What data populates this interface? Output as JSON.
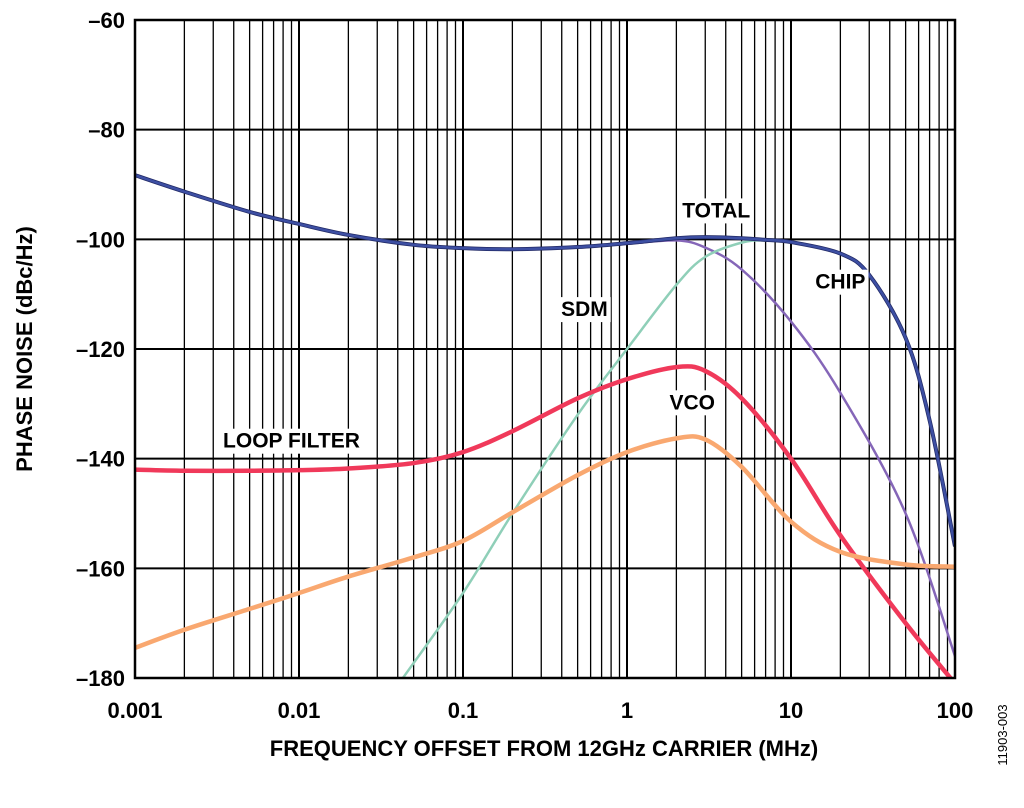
{
  "chart_data": {
    "type": "line",
    "title": "",
    "xlabel": "FREQUENCY OFFSET FROM 12GHz CARRIER (MHz)",
    "ylabel": "PHASE NOISE (dBc/Hz)",
    "xscale": "log",
    "xlim": [
      0.001,
      100
    ],
    "ylim": [
      -180,
      -60
    ],
    "grid": true,
    "legend": "none (inline labels)",
    "xticks": [
      0.001,
      0.01,
      0.1,
      1,
      10,
      100
    ],
    "xtick_labels": [
      "0.001",
      "0.01",
      "0.1",
      "1",
      "10",
      "100"
    ],
    "yticks": [
      -60,
      -80,
      -100,
      -120,
      -140,
      -160,
      -180
    ],
    "ytick_labels": [
      "–60",
      "–80",
      "–100",
      "–120",
      "–140",
      "–160",
      "–180"
    ],
    "figure_id": "11903-003",
    "series": [
      {
        "name": "CHIP",
        "color": "#8566b8",
        "label_pos": [
          20,
          -109
        ],
        "x": [
          0.001,
          0.002,
          0.005,
          0.01,
          0.02,
          0.05,
          0.1,
          0.2,
          0.5,
          1,
          2,
          3,
          5,
          10,
          20,
          50,
          100
        ],
        "y": [
          -88.3,
          -91.3,
          -95,
          -97.2,
          -99.2,
          -101,
          -101.6,
          -101.8,
          -101.4,
          -100.8,
          -100.2,
          -101.5,
          -105.5,
          -115,
          -128,
          -150,
          -176
        ]
      },
      {
        "name": "SDM",
        "color": "#8fcfb8",
        "label_pos": [
          0.55,
          -114
        ],
        "x": [
          0.043,
          0.1,
          0.2,
          0.5,
          1,
          2,
          3,
          5,
          7,
          10,
          20,
          30,
          50,
          70,
          100
        ],
        "y": [
          -180,
          -164.5,
          -150,
          -132,
          -120,
          -108.3,
          -103.2,
          -100.6,
          -100.2,
          -100.5,
          -102.6,
          -106.5,
          -118,
          -133,
          -156
        ]
      },
      {
        "name": "TOTAL",
        "color": "#3d4fa3",
        "label_pos": [
          3.5,
          -96
        ],
        "x": [
          0.001,
          0.002,
          0.005,
          0.01,
          0.02,
          0.05,
          0.1,
          0.2,
          0.5,
          1,
          2,
          3,
          5,
          7,
          10,
          20,
          30,
          50,
          70,
          100
        ],
        "y": [
          -88.3,
          -91.3,
          -95,
          -97.2,
          -99.2,
          -101,
          -101.6,
          -101.8,
          -101.4,
          -100.7,
          -99.8,
          -99.6,
          -99.8,
          -100.1,
          -100.5,
          -102.6,
          -106.5,
          -118,
          -133,
          -156
        ]
      },
      {
        "name": "LOOP FILTER",
        "color": "#f0395a",
        "label_pos": [
          0.009,
          -138
        ],
        "x": [
          0.001,
          0.002,
          0.005,
          0.01,
          0.02,
          0.05,
          0.1,
          0.2,
          0.5,
          1,
          2,
          3,
          5,
          10,
          20,
          50,
          100
        ],
        "y": [
          -142,
          -142.2,
          -142.2,
          -142.1,
          -141.8,
          -140.8,
          -138.8,
          -135,
          -129,
          -125.5,
          -123.3,
          -124,
          -129,
          -140,
          -154,
          -170,
          -181
        ]
      },
      {
        "name": "VCO",
        "color": "#f9a870",
        "label_pos": [
          2.5,
          -131
        ],
        "x": [
          0.001,
          0.002,
          0.005,
          0.01,
          0.02,
          0.05,
          0.1,
          0.2,
          0.5,
          1,
          2,
          3,
          5,
          10,
          20,
          50,
          100
        ],
        "y": [
          -174.5,
          -171.2,
          -167.4,
          -164.5,
          -161.5,
          -158,
          -155,
          -149.8,
          -143,
          -138.8,
          -136.3,
          -136.5,
          -141.5,
          -151.5,
          -157,
          -159.3,
          -159.7
        ]
      }
    ]
  }
}
